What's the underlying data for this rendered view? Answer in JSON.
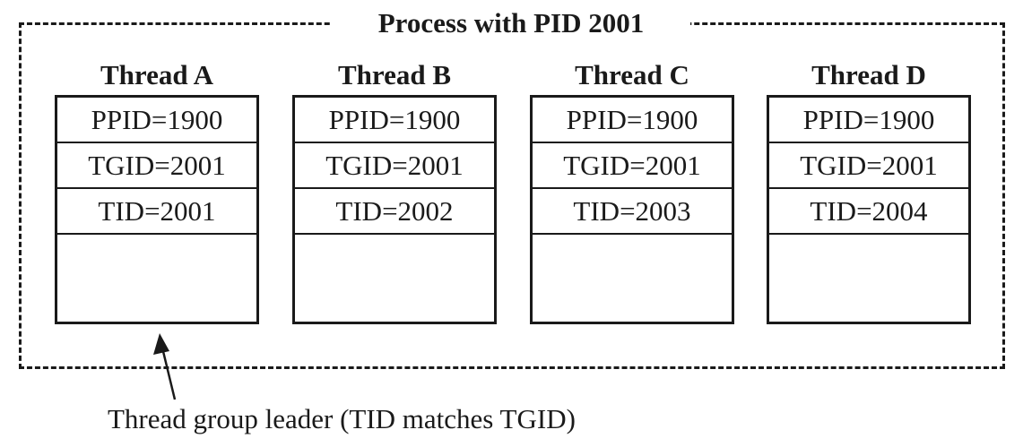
{
  "process": {
    "title": "Process with PID 2001"
  },
  "threads": [
    {
      "title": "Thread A",
      "ppid": "PPID=1900",
      "tgid": "TGID=2001",
      "tid": "TID=2001"
    },
    {
      "title": "Thread B",
      "ppid": "PPID=1900",
      "tgid": "TGID=2001",
      "tid": "TID=2002"
    },
    {
      "title": "Thread C",
      "ppid": "PPID=1900",
      "tgid": "TGID=2001",
      "tid": "TID=2003"
    },
    {
      "title": "Thread D",
      "ppid": "PPID=1900",
      "tgid": "TGID=2001",
      "tid": "TID=2004"
    }
  ],
  "annotation": {
    "caption": "Thread group leader (TID matches TGID)"
  }
}
